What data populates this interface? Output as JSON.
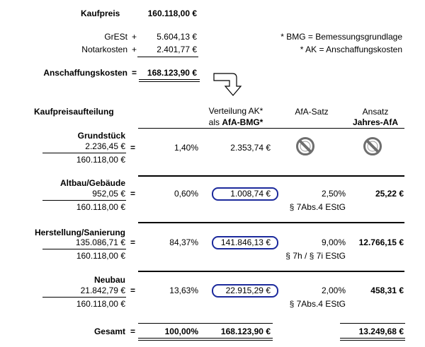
{
  "top": {
    "kaufpreis_label": "Kaufpreis",
    "kaufpreis_value": "160.118,00 €",
    "grest_label": "GrESt",
    "grest_op": "+",
    "grest_value": "5.604,13 €",
    "notar_label": "Notarkosten",
    "notar_op": "+",
    "notar_value": "2.401,77 €",
    "ak_label": "Anschaffungskosten",
    "ak_op": "=",
    "ak_value": "168.123,90 €",
    "note_bmg": "* BMG = Bemessungsgrundlage",
    "note_ak": "* AK = Anschaffungskosten"
  },
  "headers": {
    "section": "Kaufpreisaufteilung",
    "verteilung_line1": "Verteilung AK*",
    "verteilung_line2": "als AfA-BMG*",
    "afa_satz": "AfA-Satz",
    "ansatz_line1": "Ansatz",
    "ansatz_line2": "Jahres-AfA"
  },
  "rows": [
    {
      "name": "Grundstück",
      "numerator": "2.236,45 €",
      "denominator": "160.118,00 €",
      "eq": "=",
      "percent": "1,40%",
      "bmg": "2.353,74 €",
      "rate": "",
      "annual": "",
      "law": "",
      "no_depreciation": true
    },
    {
      "name": "Altbau/Gebäude",
      "numerator": "952,05 €",
      "denominator": "160.118,00 €",
      "eq": "=",
      "percent": "0,60%",
      "bmg": "1.008,74 €",
      "rate": "2,50%",
      "annual": "25,22 €",
      "law": "§ 7Abs.4 EStG",
      "no_depreciation": false
    },
    {
      "name": "Herstellung/Sanierung",
      "numerator": "135.086,71 €",
      "denominator": "160.118,00 €",
      "eq": "=",
      "percent": "84,37%",
      "bmg": "141.846,13 €",
      "rate": "9,00%",
      "annual": "12.766,15 €",
      "law": "§ 7h / § 7i EStG",
      "no_depreciation": false
    },
    {
      "name": "Neubau",
      "numerator": "21.842,79 €",
      "denominator": "160.118,00 €",
      "eq": "=",
      "percent": "13,63%",
      "bmg": "22.915,29 €",
      "rate": "2,00%",
      "annual": "458,31 €",
      "law": "§ 7Abs.4 EStG",
      "no_depreciation": false
    }
  ],
  "total": {
    "label": "Gesamt",
    "eq": "=",
    "percent": "100,00%",
    "bmg": "168.123,90 €",
    "annual": "13.249,68 €"
  },
  "colors": {
    "ellipse": "#1c2a9c",
    "icon": "#707070"
  },
  "icons": {
    "arrow": "curved-arrow-icon",
    "no": "no-sign-icon"
  }
}
